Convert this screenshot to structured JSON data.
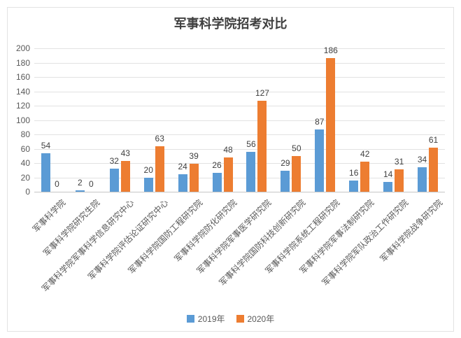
{
  "chart_data": {
    "type": "bar",
    "title": "军事科学院招考对比",
    "categories": [
      "军事科学院",
      "军事科学院研究生院",
      "军事科学院军事科学信息研究中心",
      "军事科学院评估论证研究中心",
      "军事科学院国防工程研究院",
      "军事科学院防化研究院",
      "军事科学院军事医学研究院",
      "军事科学院国防科技创新研究院",
      "军事科学院系统工程研究院",
      "军事科学院军事法制研究院",
      "军事科学院军队政治工作研究院",
      "军事科学院战争研究院"
    ],
    "series": [
      {
        "name": "2019年",
        "color": "#5B9BD5",
        "values": [
          54,
          2,
          32,
          20,
          24,
          26,
          56,
          29,
          87,
          16,
          14,
          34
        ]
      },
      {
        "name": "2020年",
        "color": "#ED7D31",
        "values": [
          0,
          0,
          43,
          63,
          39,
          48,
          127,
          50,
          186,
          42,
          31,
          61
        ]
      }
    ],
    "ylim": [
      0,
      200
    ],
    "yticks": [
      0,
      20,
      40,
      60,
      80,
      100,
      120,
      140,
      160,
      180,
      200
    ],
    "grid": true,
    "data_labels": true,
    "legend_position": "bottom",
    "xlabel_rotation_deg": 45,
    "colors": {
      "background": "#ffffff",
      "frame_border": "#e3e3e3",
      "gridline": "#e2e2e2",
      "axis_line": "#c6c6c6",
      "title_text": "#3f3f3f",
      "data_label_text": "#404040",
      "tick_text": "#595959"
    }
  }
}
